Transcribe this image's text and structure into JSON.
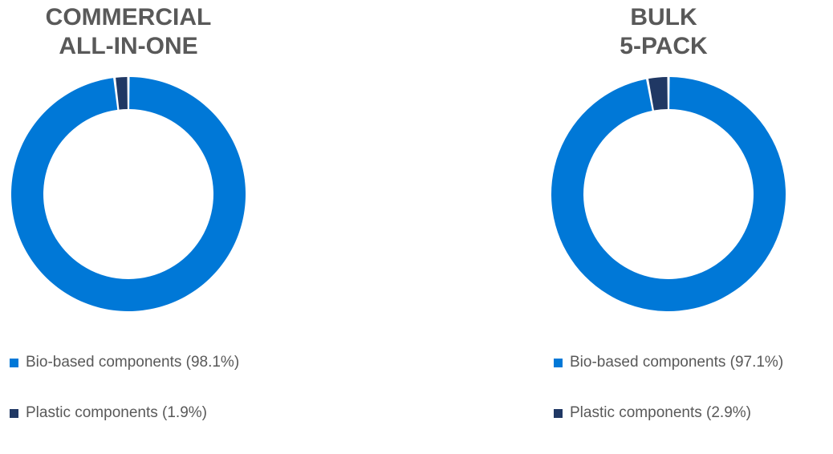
{
  "chart_data": [
    {
      "type": "pie",
      "title_lines": [
        "COMMERCIAL",
        "ALL-IN-ONE"
      ],
      "donut": true,
      "legend_position": "bottom",
      "slices": [
        {
          "label": "Bio-based components (98.1%)",
          "value": 98.1,
          "color": "#0078D7"
        },
        {
          "label": "Plastic components (1.9%)",
          "value": 1.9,
          "color": "#203864"
        }
      ]
    },
    {
      "type": "pie",
      "title_lines": [
        "BULK",
        "5-PACK"
      ],
      "donut": true,
      "legend_position": "bottom",
      "slices": [
        {
          "label": "Bio-based components (97.1%)",
          "value": 97.1,
          "color": "#0078D7"
        },
        {
          "label": "Plastic components (2.9%)",
          "value": 2.9,
          "color": "#203864"
        }
      ]
    }
  ]
}
